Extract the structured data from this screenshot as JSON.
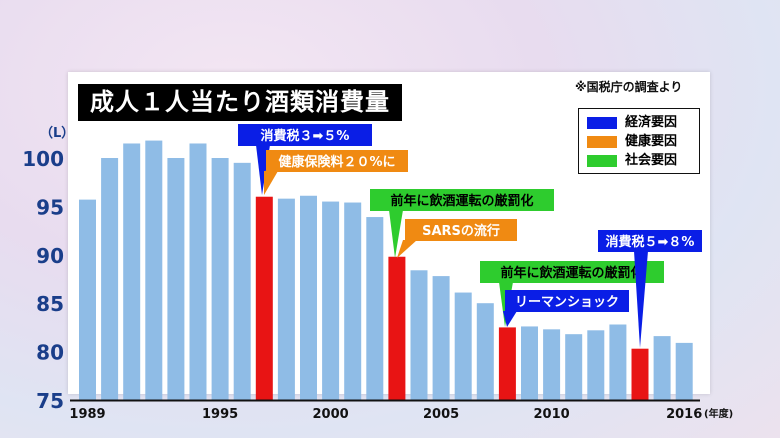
{
  "title": "成人１人当たり酒類消費量",
  "source": "※国税庁の調査より",
  "unit": "（L）",
  "year_unit": "(年度)",
  "legend": [
    {
      "label": "経済要因",
      "color": "#0a1ee6"
    },
    {
      "label": "健康要因",
      "color": "#f08a12"
    },
    {
      "label": "社会要因",
      "color": "#2ecc2e"
    }
  ],
  "colors": {
    "bar": "#8fbce6",
    "highlight": "#e81414",
    "axis_text": "#1a3e8a"
  },
  "chart_data": {
    "type": "bar",
    "title": "成人１人当たり酒類消費量",
    "ylabel": "（L）",
    "xlabel": "",
    "ylim": [
      75,
      100
    ],
    "y_ticks": [
      "75",
      "80",
      "85",
      "90",
      "95",
      "100"
    ],
    "x_tick_labels": [
      "1989",
      "1995",
      "2000",
      "2005",
      "2010",
      "2016"
    ],
    "years": [
      1989,
      1990,
      1991,
      1992,
      1993,
      1994,
      1995,
      1996,
      1997,
      1998,
      1999,
      2000,
      2001,
      2002,
      2003,
      2004,
      2005,
      2006,
      2007,
      2008,
      2009,
      2010,
      2011,
      2012,
      2013,
      2014,
      2015,
      2016
    ],
    "values": [
      95.7,
      100.0,
      101.5,
      101.8,
      100.0,
      101.5,
      100.0,
      99.5,
      96.0,
      95.8,
      96.1,
      95.5,
      95.4,
      93.9,
      89.8,
      88.4,
      87.8,
      86.1,
      85.0,
      82.5,
      82.6,
      82.3,
      81.8,
      82.2,
      82.8,
      80.3,
      81.6,
      80.9
    ],
    "highlight_years": [
      1997,
      2003,
      2008,
      2014
    ],
    "annotations": [
      {
        "text": "消費税３➡５%",
        "factor": "経済要因",
        "year": 1997
      },
      {
        "text": "健康保険料２０%に",
        "factor": "健康要因",
        "year": 1997
      },
      {
        "text": "前年に飲酒運転の厳罰化",
        "factor": "社会要因",
        "year": 2003
      },
      {
        "text": "SARSの流行",
        "factor": "健康要因",
        "year": 2003
      },
      {
        "text": "前年に飲酒運転の厳罰化",
        "factor": "社会要因",
        "year": 2008
      },
      {
        "text": "リーマンショック",
        "factor": "経済要因",
        "year": 2008
      },
      {
        "text": "消費税５➡８%",
        "factor": "経済要因",
        "year": 2014
      }
    ]
  }
}
